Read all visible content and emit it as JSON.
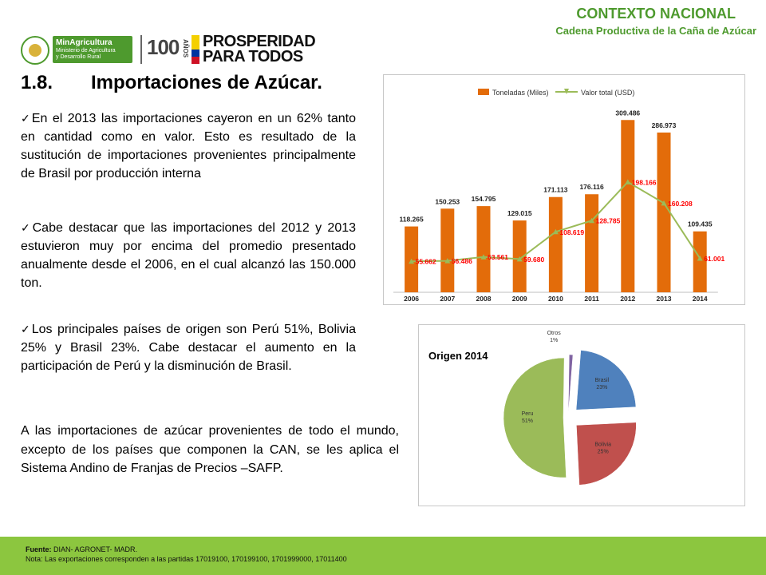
{
  "header": {
    "title": "CONTEXTO NACIONAL",
    "subtitle": "Cadena Productiva de la Caña de Azúcar"
  },
  "logos": {
    "min_line1": "MinAgricultura",
    "min_line2": "Ministerio de Agricultura",
    "min_line3": "y Desarrollo Rural",
    "centenario": "100",
    "anos": "AÑOS",
    "prosperidad_1": "PROSPERIDAD",
    "prosperidad_2": "PARA TODOS"
  },
  "section": {
    "number": "1.8.",
    "title": "Importaciones de Azúcar."
  },
  "bullets": [
    "En el 2013 las importaciones cayeron en un 62% tanto en cantidad como en valor. Esto es resultado de la sustitución de importaciones provenientes principalmente de Brasil por producción interna",
    "Cabe destacar que las importaciones del 2012 y 2013 estuvieron muy por encima del promedio presentado anualmente desde el 2006, en el cual alcanzó las 150.000 ton.",
    "Los principales países de origen son Perú 51%, Bolivia 25% y Brasil 23%. Cabe destacar el aumento en la participación de Perú y la disminución de Brasil."
  ],
  "paragraph": "A las importaciones de azúcar provenientes de todo el mundo, excepto de los países que componen la CAN, se les aplica el Sistema Andino de Franjas de Precios –SAFP.",
  "footer": {
    "source_label": "Fuente:",
    "source": "DIAN- AGRONET- MADR.",
    "note": "Nota: Las exportaciones corresponden a las partidas 17019100, 170199100, 1701999000, 17011400"
  },
  "colors": {
    "green": "#4e9a2e",
    "bar": "#e36c0a",
    "line": "#9bbb59",
    "value_red": "#ff0000",
    "footer": "#8cc63f"
  },
  "chart_data": [
    {
      "type": "bar",
      "categories": [
        "2006",
        "2007",
        "2008",
        "2009",
        "2010",
        "2011",
        "2012",
        "2013",
        "2014"
      ],
      "series": [
        {
          "name": "Toneladas (Miles)",
          "type": "bar",
          "values": [
            118.265,
            150.253,
            154.795,
            129.015,
            171.113,
            176.116,
            309.486,
            286.973,
            109.435
          ],
          "labels": [
            "118.265",
            "150.253",
            "154.795",
            "129.015",
            "171.113",
            "176.116",
            "309.486",
            "286.973",
            "109.435"
          ]
        },
        {
          "name": "Valor total (USD)",
          "type": "line",
          "values": [
            55.662,
            56.486,
            63.561,
            59.68,
            108.619,
            128.785,
            198.166,
            160.208,
            61.001
          ],
          "labels": [
            "55.662",
            "56.486",
            "63.561",
            "59.680",
            "108.619",
            "128.785",
            "198.166",
            "160.208",
            "61.001"
          ]
        }
      ],
      "ylim": [
        0,
        340
      ],
      "legend": "top",
      "grid": false
    },
    {
      "type": "pie",
      "title": "Origen 2014",
      "categories": [
        "Otros",
        "Brasil",
        "Bolivia",
        "Peru"
      ],
      "values": [
        1,
        23,
        25,
        51
      ],
      "labels": [
        "1%",
        "23%",
        "25%",
        "51%"
      ],
      "colors": [
        "#8064a2",
        "#4f81bd",
        "#c0504d",
        "#9bbb59"
      ],
      "exploded": true
    }
  ]
}
